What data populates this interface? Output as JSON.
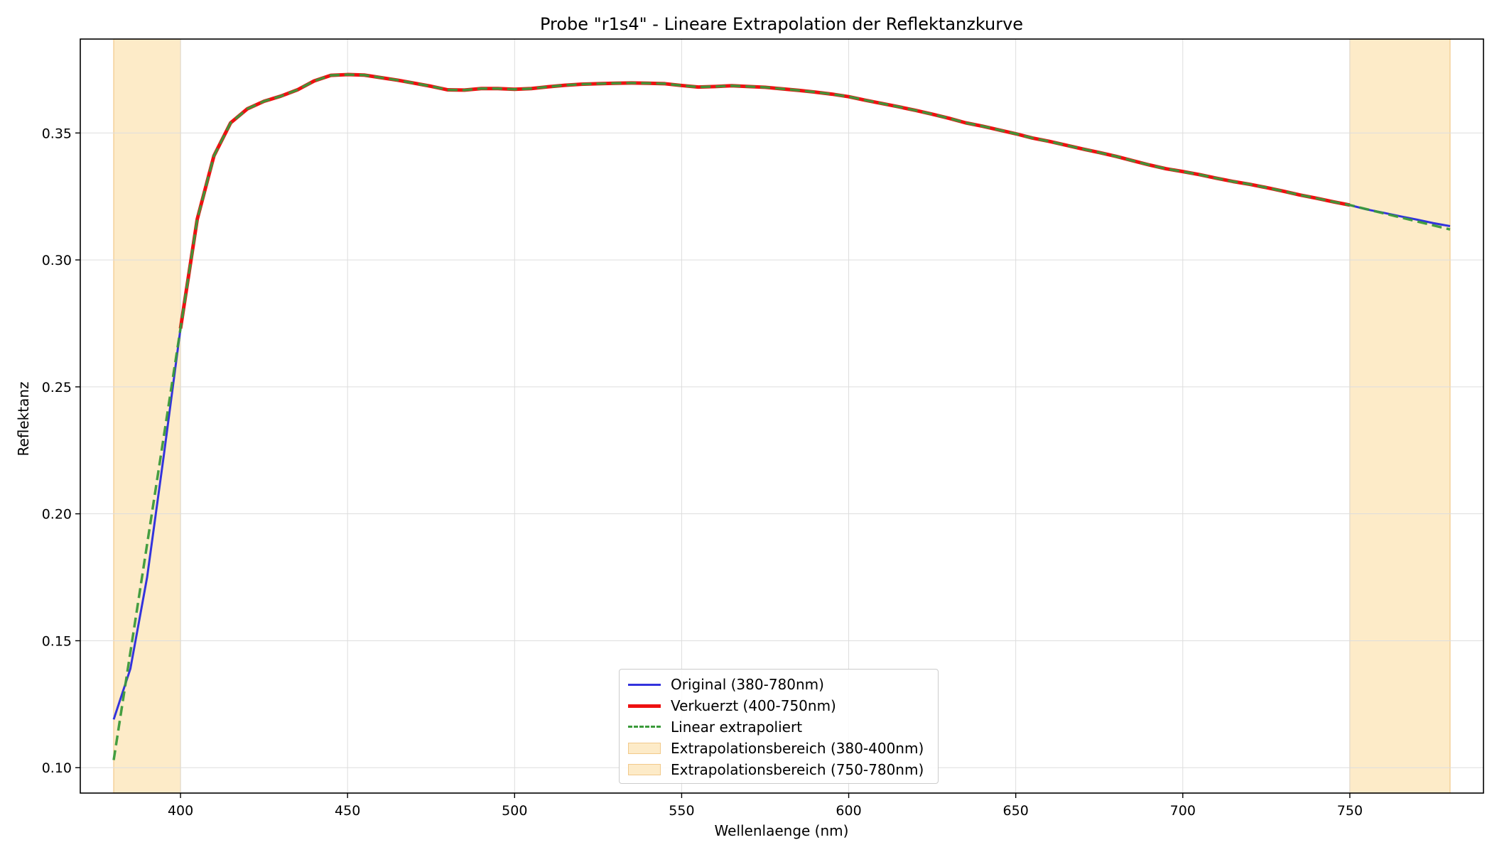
{
  "chart_data": {
    "type": "line",
    "title": "Probe \"r1s4\" - Lineare Extrapolation der Reflektanzkurve",
    "xlabel": "Wellenlaenge (nm)",
    "ylabel": "Reflektanz",
    "xlim": [
      370,
      790
    ],
    "ylim": [
      0.09,
      0.387
    ],
    "x_ticks": [
      400,
      450,
      500,
      550,
      600,
      650,
      700,
      750
    ],
    "y_ticks": [
      0.1,
      0.15,
      0.2,
      0.25,
      0.3,
      0.35
    ],
    "x_tick_labels": [
      "400",
      "450",
      "500",
      "550",
      "600",
      "650",
      "700",
      "750"
    ],
    "y_tick_labels": [
      "0.10",
      "0.15",
      "0.20",
      "0.25",
      "0.30",
      "0.35"
    ],
    "grid": true,
    "legend_position": "bottom-center",
    "shaded_regions": [
      {
        "name": "Extrapolationsbereich (380-400nm)",
        "x_start": 380,
        "x_end": 400,
        "color": "#fdebc8",
        "edge": "#f2c98a"
      },
      {
        "name": "Extrapolationsbereich (750-780nm)",
        "x_start": 750,
        "x_end": 780,
        "color": "#fdebc8",
        "edge": "#f2c98a"
      }
    ],
    "series": [
      {
        "name": "Original (380-780nm)",
        "color": "#3333dd",
        "style": "solid",
        "x": [
          380,
          385,
          390,
          395,
          400,
          405,
          410,
          415,
          420,
          425,
          430,
          435,
          440,
          445,
          450,
          455,
          460,
          465,
          470,
          475,
          480,
          485,
          490,
          495,
          500,
          505,
          510,
          515,
          520,
          525,
          530,
          535,
          540,
          545,
          550,
          555,
          560,
          565,
          570,
          575,
          580,
          585,
          590,
          595,
          600,
          605,
          610,
          615,
          620,
          625,
          630,
          635,
          640,
          645,
          650,
          655,
          660,
          665,
          670,
          675,
          680,
          685,
          690,
          695,
          700,
          705,
          710,
          715,
          720,
          725,
          730,
          735,
          740,
          745,
          750,
          755,
          760,
          765,
          770,
          775,
          780
        ],
        "values": [
          0.119,
          0.139,
          0.175,
          0.223,
          0.273,
          0.316,
          0.341,
          0.354,
          0.3595,
          0.3625,
          0.3645,
          0.367,
          0.3705,
          0.3727,
          0.373,
          0.3728,
          0.3718,
          0.3708,
          0.3696,
          0.3684,
          0.367,
          0.3669,
          0.3675,
          0.3675,
          0.3672,
          0.3675,
          0.3682,
          0.3688,
          0.3692,
          0.3694,
          0.3696,
          0.3697,
          0.3696,
          0.3694,
          0.3687,
          0.3681,
          0.3683,
          0.3686,
          0.3683,
          0.368,
          0.3674,
          0.3668,
          0.3661,
          0.3653,
          0.3643,
          0.3629,
          0.3616,
          0.3603,
          0.3589,
          0.3574,
          0.3558,
          0.354,
          0.3527,
          0.3512,
          0.3497,
          0.348,
          0.3467,
          0.3452,
          0.3437,
          0.3423,
          0.3408,
          0.3391,
          0.3374,
          0.3359,
          0.3348,
          0.3336,
          0.3322,
          0.3309,
          0.3298,
          0.3285,
          0.3271,
          0.3256,
          0.3243,
          0.3229,
          0.3216,
          0.3199,
          0.3186,
          0.3172,
          0.3159,
          0.3145,
          0.3133
        ]
      },
      {
        "name": "Verkuerzt (400-750nm)",
        "color": "#ee1111",
        "style": "solid-thick",
        "x": [
          400,
          405,
          410,
          415,
          420,
          425,
          430,
          435,
          440,
          445,
          450,
          455,
          460,
          465,
          470,
          475,
          480,
          485,
          490,
          495,
          500,
          505,
          510,
          515,
          520,
          525,
          530,
          535,
          540,
          545,
          550,
          555,
          560,
          565,
          570,
          575,
          580,
          585,
          590,
          595,
          600,
          605,
          610,
          615,
          620,
          625,
          630,
          635,
          640,
          645,
          650,
          655,
          660,
          665,
          670,
          675,
          680,
          685,
          690,
          695,
          700,
          705,
          710,
          715,
          720,
          725,
          730,
          735,
          740,
          745,
          750
        ],
        "values": [
          0.273,
          0.316,
          0.341,
          0.354,
          0.3595,
          0.3625,
          0.3645,
          0.367,
          0.3705,
          0.3727,
          0.373,
          0.3728,
          0.3718,
          0.3708,
          0.3696,
          0.3684,
          0.367,
          0.3669,
          0.3675,
          0.3675,
          0.3672,
          0.3675,
          0.3682,
          0.3688,
          0.3692,
          0.3694,
          0.3696,
          0.3697,
          0.3696,
          0.3694,
          0.3687,
          0.3681,
          0.3683,
          0.3686,
          0.3683,
          0.368,
          0.3674,
          0.3668,
          0.3661,
          0.3653,
          0.3643,
          0.3629,
          0.3616,
          0.3603,
          0.3589,
          0.3574,
          0.3558,
          0.354,
          0.3527,
          0.3512,
          0.3497,
          0.348,
          0.3467,
          0.3452,
          0.3437,
          0.3423,
          0.3408,
          0.3391,
          0.3374,
          0.3359,
          0.3348,
          0.3336,
          0.3322,
          0.3309,
          0.3298,
          0.3285,
          0.3271,
          0.3256,
          0.3243,
          0.3229,
          0.3216
        ]
      },
      {
        "name": "Linear extrapoliert",
        "color": "#3a9a3a",
        "style": "dashed",
        "x": [
          380,
          385,
          390,
          395,
          400,
          405,
          410,
          415,
          420,
          425,
          430,
          435,
          440,
          445,
          450,
          455,
          460,
          465,
          470,
          475,
          480,
          485,
          490,
          495,
          500,
          505,
          510,
          515,
          520,
          525,
          530,
          535,
          540,
          545,
          550,
          555,
          560,
          565,
          570,
          575,
          580,
          585,
          590,
          595,
          600,
          605,
          610,
          615,
          620,
          625,
          630,
          635,
          640,
          645,
          650,
          655,
          660,
          665,
          670,
          675,
          680,
          685,
          690,
          695,
          700,
          705,
          710,
          715,
          720,
          725,
          730,
          735,
          740,
          745,
          750,
          755,
          760,
          765,
          770,
          775,
          780
        ],
        "values": [
          0.103,
          0.1455,
          0.188,
          0.2305,
          0.273,
          0.316,
          0.341,
          0.354,
          0.3595,
          0.3625,
          0.3645,
          0.367,
          0.3705,
          0.3727,
          0.373,
          0.3728,
          0.3718,
          0.3708,
          0.3696,
          0.3684,
          0.367,
          0.3669,
          0.3675,
          0.3675,
          0.3672,
          0.3675,
          0.3682,
          0.3688,
          0.3692,
          0.3694,
          0.3696,
          0.3697,
          0.3696,
          0.3694,
          0.3687,
          0.3681,
          0.3683,
          0.3686,
          0.3683,
          0.368,
          0.3674,
          0.3668,
          0.3661,
          0.3653,
          0.3643,
          0.3629,
          0.3616,
          0.3603,
          0.3589,
          0.3574,
          0.3558,
          0.354,
          0.3527,
          0.3512,
          0.3497,
          0.348,
          0.3467,
          0.3452,
          0.3437,
          0.3423,
          0.3408,
          0.3391,
          0.3374,
          0.3359,
          0.3348,
          0.3336,
          0.3322,
          0.3309,
          0.3298,
          0.3285,
          0.3271,
          0.3256,
          0.3243,
          0.3229,
          0.3216,
          0.32,
          0.3184,
          0.3168,
          0.3152,
          0.3136,
          0.312
        ]
      }
    ]
  }
}
